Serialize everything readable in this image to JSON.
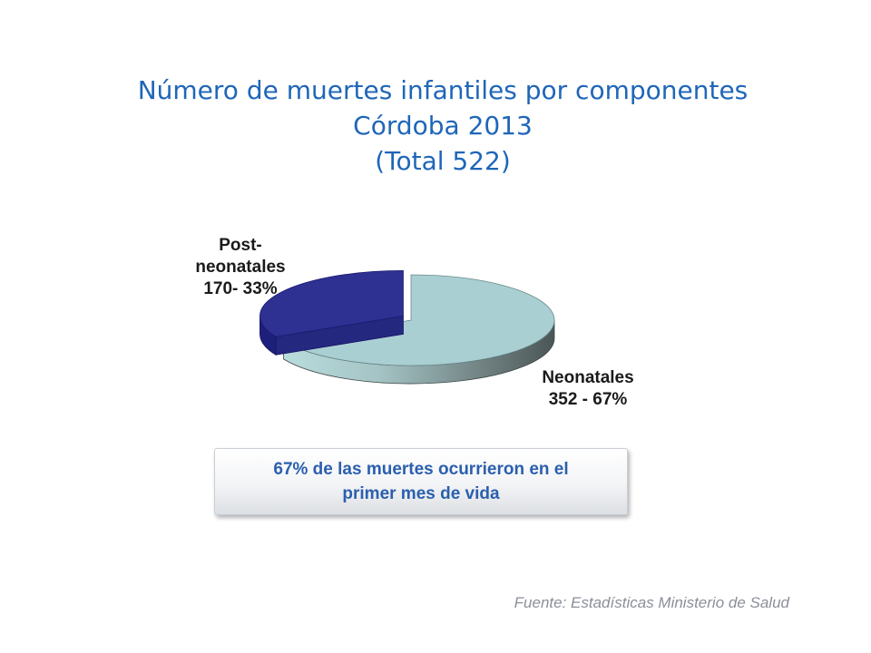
{
  "title": {
    "line1": "Número de muertes infantiles por componentes",
    "line2": "Córdoba 2013",
    "line3": "(Total 522)"
  },
  "chart_data": {
    "type": "pie",
    "style": "3d-exploded",
    "total": 522,
    "slices": [
      {
        "name": "Neonatales",
        "value": 352,
        "percent": 67,
        "label_lines": [
          "Neonatales",
          "352  - 67%"
        ],
        "color": "#a9cfd2"
      },
      {
        "name": "Post-neonatales",
        "value": 170,
        "percent": 33,
        "label_lines": [
          "Post-",
          "neonatales",
          "170- 33%"
        ],
        "color": "#2e3192"
      }
    ]
  },
  "callout": {
    "line1": "67%  de  las muertes ocurrieron en  el",
    "line2": "primer mes de vida"
  },
  "source": "Fuente: Estadísticas Ministerio de  Salud",
  "colors": {
    "title": "#1f66b8",
    "callout_text": "#2b5fae",
    "source_text": "#8a8f99",
    "neonatal_top": "#a9cfd2",
    "neonatal_side_dark": "#4e5a5a",
    "postneonatal_top": "#2e3192",
    "postneonatal_side": "#1d1f7a"
  }
}
